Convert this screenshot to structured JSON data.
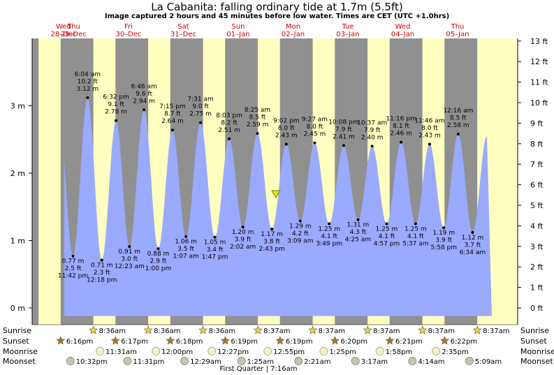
{
  "title": "La Cabanita: falling  ordinary tide at 1.7m (5.5ft)",
  "subtitle": "Image captured 2 hours and 45 minutes before low water. Times are CET (UTC +1.0hrs)",
  "colors": {
    "day": "#ffffc0",
    "night": "#909090",
    "tide": "#9aaaff",
    "date": "#cc0000"
  },
  "days": [
    {
      "dow": "Wed",
      "date": "28–Dec"
    },
    {
      "dow": "Thu",
      "date": "29–Dec"
    },
    {
      "dow": "Fri",
      "date": "30–Dec"
    },
    {
      "dow": "Sat",
      "date": "31–Dec"
    },
    {
      "dow": "Sun",
      "date": "01–Jan"
    },
    {
      "dow": "Mon",
      "date": "02–Jan"
    },
    {
      "dow": "Tue",
      "date": "03–Jan"
    },
    {
      "dow": "Wed",
      "date": "04–Jan"
    },
    {
      "dow": "Thu",
      "date": "05–Jan"
    }
  ],
  "chart_data": {
    "type": "area",
    "y_left_unit": "m",
    "y_left_ticks": [
      "0 m",
      "1 m",
      "2 m",
      "3 m"
    ],
    "y_right_ticks": [
      "0 ft",
      "1 ft",
      "2 ft",
      "3 ft",
      "4 ft",
      "5 ft",
      "6 ft",
      "7 ft",
      "8 ft",
      "9 ft",
      "10 ft",
      "11 ft",
      "12 ft",
      "13 ft"
    ],
    "ylim_m": [
      0,
      4.0
    ],
    "current_level_m": 1.7,
    "extremes": [
      {
        "type": "low",
        "time": "11:42 pm",
        "m": "0.77 m",
        "ft": "2.5 ft",
        "value": 0.77
      },
      {
        "type": "high",
        "time": "6:04 am",
        "m": "3.12 m",
        "ft": "10.2 ft",
        "value": 3.12
      },
      {
        "type": "low",
        "time": "12:18 pm",
        "m": "0.71 m",
        "ft": "2.3 ft",
        "value": 0.71
      },
      {
        "type": "high",
        "time": "6:32 pm",
        "m": "2.78 m",
        "ft": "9.1 ft",
        "value": 2.78
      },
      {
        "type": "low",
        "time": "12:23 am",
        "m": "0.91 m",
        "ft": "3.0 ft",
        "value": 0.91
      },
      {
        "type": "high",
        "time": "6:46 am",
        "m": "2.94 m",
        "ft": "9.6 ft",
        "value": 2.94
      },
      {
        "type": "low",
        "time": "1:00 pm",
        "m": "0.88 m",
        "ft": "2.9 ft",
        "value": 0.88
      },
      {
        "type": "high",
        "time": "7:15 pm",
        "m": "2.64 m",
        "ft": "8.7 ft",
        "value": 2.64
      },
      {
        "type": "low",
        "time": "1:07 am",
        "m": "1.06 m",
        "ft": "3.5 ft",
        "value": 1.06
      },
      {
        "type": "high",
        "time": "7:31 am",
        "m": "2.75 m",
        "ft": "9.0 ft",
        "value": 2.75
      },
      {
        "type": "low",
        "time": "1:47 pm",
        "m": "1.05 m",
        "ft": "3.4 ft",
        "value": 1.05
      },
      {
        "type": "high",
        "time": "8:03 pm",
        "m": "2.51 m",
        "ft": "8.2 ft",
        "value": 2.51
      },
      {
        "type": "low",
        "time": "2:02 am",
        "m": "1.20 m",
        "ft": "3.9 ft",
        "value": 1.2
      },
      {
        "type": "high",
        "time": "8:25 am",
        "m": "2.59 m",
        "ft": "8.5 ft",
        "value": 2.59
      },
      {
        "type": "low",
        "time": "2:43 pm",
        "m": "1.17 m",
        "ft": "3.8 ft",
        "value": 1.17
      },
      {
        "type": "high",
        "time": "9:02 pm",
        "m": "2.43 m",
        "ft": "8.0 ft",
        "value": 2.43
      },
      {
        "type": "low",
        "time": "3:09 am",
        "m": "1.29 m",
        "ft": "4.2 ft",
        "value": 1.29
      },
      {
        "type": "high",
        "time": "9:27 am",
        "m": "2.45 m",
        "ft": "8.0 ft",
        "value": 2.45
      },
      {
        "type": "low",
        "time": "3:49 pm",
        "m": "1.25 m",
        "ft": "4.1 ft",
        "value": 1.25
      },
      {
        "type": "high",
        "time": "10:08 pm",
        "m": "2.41 m",
        "ft": "7.9 ft",
        "value": 2.41
      },
      {
        "type": "low",
        "time": "4:25 am",
        "m": "1.31 m",
        "ft": "4.3 ft",
        "value": 1.31
      },
      {
        "type": "high",
        "time": "10:37 am",
        "m": "2.40 m",
        "ft": "7.9 ft",
        "value": 2.4
      },
      {
        "type": "low",
        "time": "4:57 pm",
        "m": "1.25 m",
        "ft": "4.1 ft",
        "value": 1.25
      },
      {
        "type": "high",
        "time": "11:16 pm",
        "m": "2.46 m",
        "ft": "8.1 ft",
        "value": 2.46
      },
      {
        "type": "low",
        "time": "5:37 am",
        "m": "1.25 m",
        "ft": "4.1 ft",
        "value": 1.25
      },
      {
        "type": "high",
        "time": "11:46 am",
        "m": "2.43 m",
        "ft": "8.0 ft",
        "value": 2.43
      },
      {
        "type": "low",
        "time": "5:58 pm",
        "m": "1.19 m",
        "ft": "3.9 ft",
        "value": 1.19
      },
      {
        "type": "high",
        "time": "12:16 am",
        "m": "2.58 m",
        "ft": "8.5 ft",
        "value": 2.58
      },
      {
        "type": "low",
        "time": "6:34 am",
        "m": "1.12 m",
        "ft": "3.7 ft",
        "value": 1.12
      }
    ]
  },
  "astro": {
    "row_labels": [
      "Sunrise",
      "Sunset",
      "Moonrise",
      "Moonset"
    ],
    "sunrise": [
      "8:36am",
      "8:36am",
      "8:36am",
      "8:37am",
      "8:37am",
      "8:37am",
      "8:37am",
      "8:37am"
    ],
    "sunset": [
      "6:16pm",
      "6:17pm",
      "6:18pm",
      "6:19pm",
      "6:19pm",
      "6:20pm",
      "6:21pm",
      "6:22pm"
    ],
    "moonrise": [
      "11:31am",
      "12:00pm",
      "12:27pm",
      "12:55pm",
      "1:25pm",
      "1:58pm",
      "2:35pm"
    ],
    "moonset": [
      "10:32pm",
      "11:31pm",
      "12:29am",
      "1:25am",
      "2:21am",
      "3:17am",
      "4:14am",
      "5:09am"
    ],
    "moon_phase": "First Quarter | 7:16am"
  }
}
